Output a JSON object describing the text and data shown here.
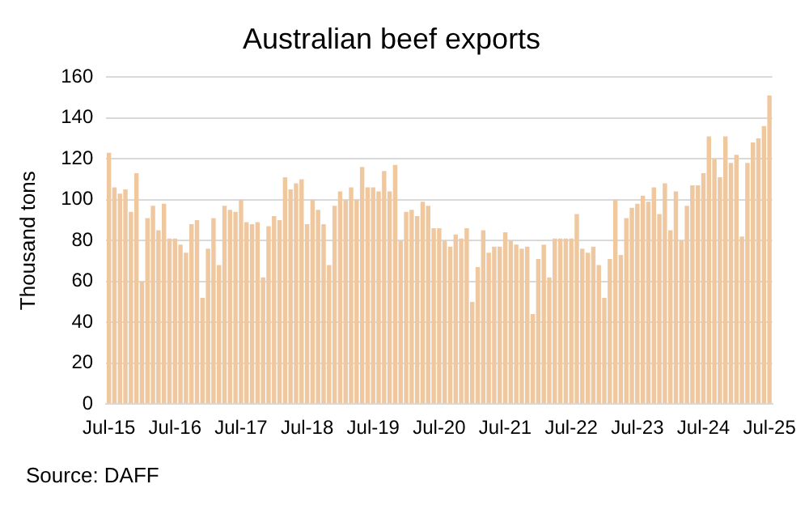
{
  "chart_data": {
    "type": "bar",
    "title": "Australian beef exports",
    "ylabel": "Thousand tons",
    "categories": [
      "Jul-15",
      null,
      null,
      null,
      null,
      null,
      null,
      null,
      null,
      null,
      null,
      null,
      "Jul-16",
      null,
      null,
      null,
      null,
      null,
      null,
      null,
      null,
      null,
      null,
      null,
      "Jul-17",
      null,
      null,
      null,
      null,
      null,
      null,
      null,
      null,
      null,
      null,
      null,
      "Jul-18",
      null,
      null,
      null,
      null,
      null,
      null,
      null,
      null,
      null,
      null,
      null,
      "Jul-19",
      null,
      null,
      null,
      null,
      null,
      null,
      null,
      null,
      null,
      null,
      null,
      "Jul-20",
      null,
      null,
      null,
      null,
      null,
      null,
      null,
      null,
      null,
      null,
      null,
      "Jul-21",
      null,
      null,
      null,
      null,
      null,
      null,
      null,
      null,
      null,
      null,
      null,
      "Jul-22",
      null,
      null,
      null,
      null,
      null,
      null,
      null,
      null,
      null,
      null,
      null,
      "Jul-23",
      null,
      null,
      null,
      null,
      null,
      null,
      null,
      null,
      null,
      null,
      null,
      "Jul-24",
      null,
      null,
      null,
      null,
      null,
      null,
      null,
      null,
      null,
      null,
      null,
      "Jul-25"
    ],
    "values": [
      123,
      106,
      103,
      105,
      94,
      113,
      60,
      91,
      97,
      85,
      98,
      81,
      81,
      78,
      74,
      88,
      90,
      52,
      76,
      91,
      68,
      97,
      95,
      94,
      100,
      89,
      88,
      89,
      62,
      87,
      92,
      90,
      111,
      105,
      108,
      110,
      88,
      100,
      95,
      88,
      68,
      97,
      104,
      100,
      106,
      100,
      116,
      106,
      106,
      104,
      114,
      104,
      117,
      80,
      94,
      95,
      92,
      99,
      97,
      86,
      86,
      80,
      77,
      83,
      81,
      86,
      50,
      67,
      85,
      74,
      77,
      77,
      84,
      80,
      78,
      76,
      77,
      44,
      71,
      78,
      62,
      81,
      81,
      81,
      81,
      93,
      76,
      74,
      77,
      68,
      52,
      71,
      100,
      73,
      91,
      96,
      98,
      102,
      99,
      106,
      93,
      108,
      85,
      104,
      80,
      97,
      107,
      107,
      113,
      131,
      120,
      111,
      131,
      118,
      122,
      82,
      118,
      128,
      130,
      136,
      151
    ],
    "color": "#f0c8a0",
    "ylim": [
      0,
      160
    ],
    "yticks": [
      0,
      20,
      40,
      60,
      80,
      100,
      120,
      140,
      160
    ],
    "grid": "y",
    "annotations": [
      "Source: DAFF"
    ]
  }
}
